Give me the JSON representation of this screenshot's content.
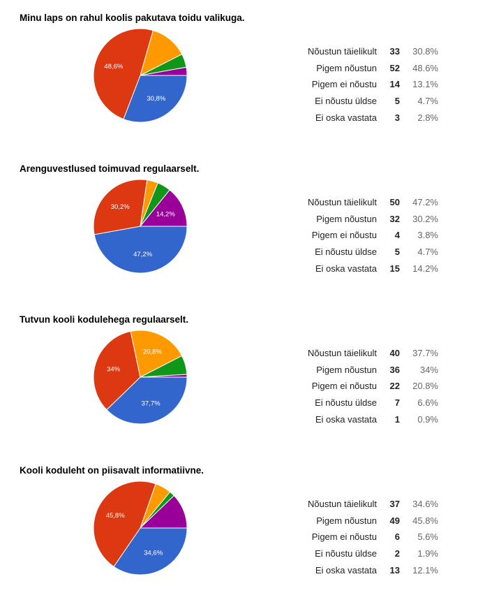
{
  "palette": [
    "#3366cc",
    "#dc3912",
    "#ff9900",
    "#109618",
    "#990099"
  ],
  "chart_data": [
    {
      "type": "pie",
      "title": "Minu laps on rahul koolis pakutava toidu valikuga.",
      "categories": [
        "Nõustun täielikult",
        "Pigem nõustun",
        "Pigem ei nõustu",
        "Ei nõustu üldse",
        "Ei oska vastata"
      ],
      "values": [
        33,
        52,
        14,
        5,
        3
      ],
      "percents": [
        "30.8%",
        "48.6%",
        "13.1%",
        "4.7%",
        "2.8%"
      ],
      "slice_labels": [
        "30,8%",
        "48,6%",
        "",
        "",
        ""
      ]
    },
    {
      "type": "pie",
      "title": "Arenguvestlused toimuvad regulaarselt.",
      "categories": [
        "Nõustun täielikult",
        "Pigem nõustun",
        "Pigem ei nõustu",
        "Ei nõustu üldse",
        "Ei oska vastata"
      ],
      "values": [
        50,
        32,
        4,
        5,
        15
      ],
      "percents": [
        "47.2%",
        "30.2%",
        "3.8%",
        "4.7%",
        "14.2%"
      ],
      "slice_labels": [
        "47,2%",
        "30,2%",
        "",
        "",
        "14,2%"
      ]
    },
    {
      "type": "pie",
      "title": "Tutvun kooli kodulehega regulaarselt.",
      "categories": [
        "Nõustun täielikult",
        "Pigem nõustun",
        "Pigem ei nõustu",
        "Ei nõustu üldse",
        "Ei oska vastata"
      ],
      "values": [
        40,
        36,
        22,
        7,
        1
      ],
      "percents": [
        "37.7%",
        "34%",
        "20.8%",
        "6.6%",
        "0.9%"
      ],
      "slice_labels": [
        "37,7%",
        "34%",
        "20,8%",
        "",
        ""
      ]
    },
    {
      "type": "pie",
      "title": "Kooli koduleht on piisavalt informatiivne.",
      "categories": [
        "Nõustun täielikult",
        "Pigem nõustun",
        "Pigem ei nõustu",
        "Ei nõustu üldse",
        "Ei oska vastata"
      ],
      "values": [
        37,
        49,
        6,
        2,
        13
      ],
      "percents": [
        "34.6%",
        "45.8%",
        "5.6%",
        "1.9%",
        "12.1%"
      ],
      "slice_labels": [
        "34,6%",
        "45,8%",
        "",
        "",
        ""
      ]
    }
  ]
}
